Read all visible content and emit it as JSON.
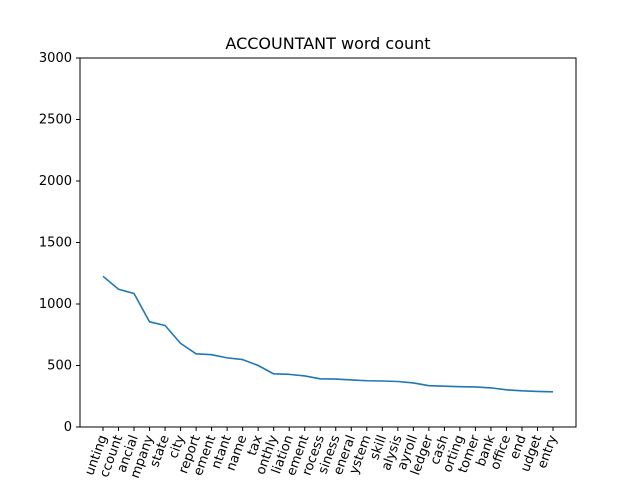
{
  "chart_data": {
    "type": "line",
    "title": "ACCOUNTANT word count",
    "xlabel": "",
    "ylabel": "",
    "ylim": [
      0,
      3000
    ],
    "yticks": [
      0,
      500,
      1000,
      1500,
      2000,
      2500,
      3000
    ],
    "grid": false,
    "line_color": "#1f77b4",
    "categories": [
      "accounting",
      "account",
      "financial",
      "company",
      "state",
      "city",
      "report",
      "management",
      "accountant",
      "name",
      "tax",
      "monthly",
      "reconciliation",
      "statement",
      "process",
      "business",
      "general",
      "system",
      "skill",
      "analysis",
      "payroll",
      "ledger",
      "cash",
      "reporting",
      "customer",
      "bank",
      "office",
      "end",
      "budget",
      "entry"
    ],
    "category_labels": [
      "unting",
      "ccount",
      "ancial",
      "mpany",
      "state",
      "city",
      "report",
      "ement",
      "ntant",
      "name",
      "tax",
      "onthly",
      "liation",
      "ement",
      "rocess",
      "siness",
      "eneral",
      "ystem",
      "skill",
      "alysis",
      "ayroll",
      "ledger",
      "cash",
      "orting",
      "tomer",
      "bank",
      "office",
      "end",
      "udget",
      "entry"
    ],
    "values": [
      1225,
      1120,
      1085,
      855,
      825,
      680,
      595,
      588,
      562,
      548,
      500,
      432,
      428,
      415,
      392,
      390,
      383,
      376,
      374,
      370,
      358,
      336,
      332,
      328,
      326,
      318,
      302,
      294,
      289,
      286
    ]
  }
}
